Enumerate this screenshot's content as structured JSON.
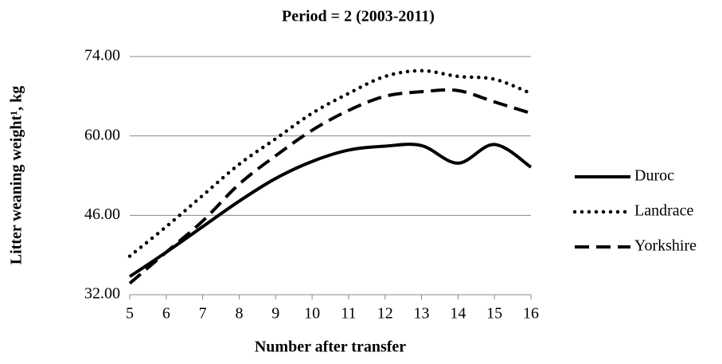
{
  "chart_data": {
    "type": "line",
    "title": "Period = 2 (2003-2011)",
    "xlabel": "Number after transfer",
    "ylabel": "Litter weaning weight¹, kg",
    "x": [
      5,
      6,
      7,
      8,
      9,
      10,
      11,
      12,
      13,
      14,
      15,
      16
    ],
    "xlim": [
      5,
      16
    ],
    "xticks": [
      5,
      6,
      7,
      8,
      9,
      10,
      11,
      12,
      13,
      14,
      15,
      16
    ],
    "ylim": [
      32,
      74
    ],
    "yticks": [
      {
        "value": 32,
        "label": "32.00"
      },
      {
        "value": 46,
        "label": "46.00"
      },
      {
        "value": 60,
        "label": "60.00"
      },
      {
        "value": 74,
        "label": "74.00"
      }
    ],
    "grid": true,
    "legend": "right",
    "series": [
      {
        "name": "Duroc",
        "color": "#000000",
        "style": "solid",
        "values": [
          35.2,
          39.5,
          44,
          48.5,
          52.5,
          55.5,
          57.5,
          58.2,
          58.3,
          55.2,
          58.5,
          54.5
        ]
      },
      {
        "name": "Landrace",
        "color": "#000000",
        "style": "dotted",
        "values": [
          38.8,
          44,
          49.5,
          55,
          59.5,
          64,
          67.5,
          70.5,
          71.5,
          70.5,
          70,
          67.5
        ]
      },
      {
        "name": "Yorkshire",
        "color": "#000000",
        "style": "dashed",
        "values": [
          34,
          39.5,
          45,
          51.5,
          56.5,
          61,
          64.5,
          67,
          67.8,
          68,
          66,
          64
        ]
      }
    ]
  }
}
